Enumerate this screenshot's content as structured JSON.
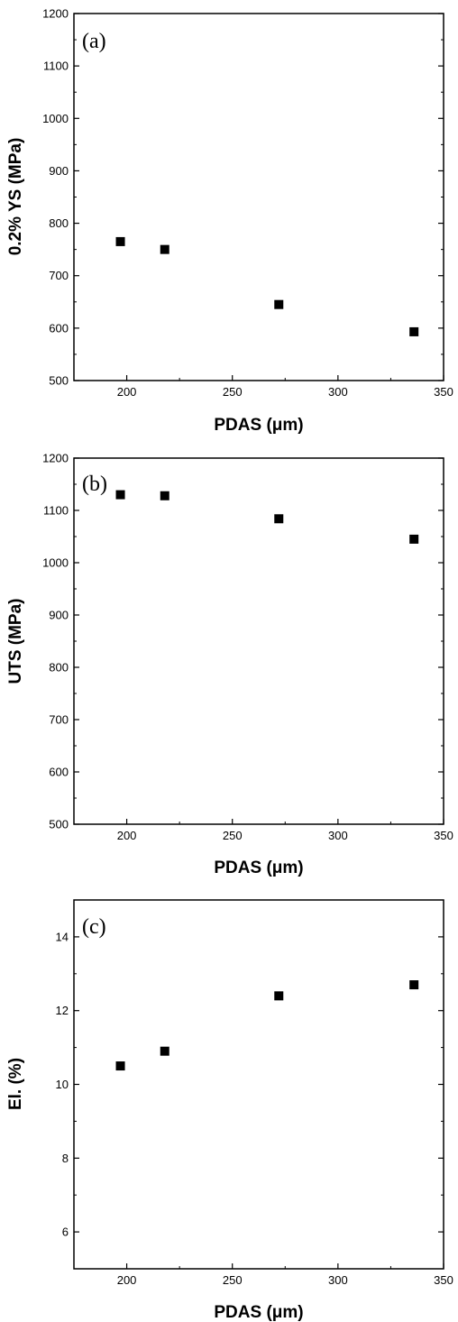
{
  "chart_data": [
    {
      "type": "scatter",
      "panel_label": "(a)",
      "xlabel": "PDAS (μm)",
      "ylabel": "0.2% YS (MPa)",
      "xlim": [
        175,
        350
      ],
      "ylim": [
        500,
        1200
      ],
      "xticks": [
        200,
        250,
        300,
        350
      ],
      "yticks": [
        500,
        600,
        700,
        800,
        900,
        1000,
        1100,
        1200
      ],
      "series": [
        {
          "x": [
            197,
            218,
            272,
            336
          ],
          "y": [
            765,
            750,
            645,
            593
          ]
        }
      ]
    },
    {
      "type": "scatter",
      "panel_label": "(b)",
      "xlabel": "PDAS (μm)",
      "ylabel": "UTS (MPa)",
      "xlim": [
        175,
        350
      ],
      "ylim": [
        500,
        1200
      ],
      "xticks": [
        200,
        250,
        300,
        350
      ],
      "yticks": [
        500,
        600,
        700,
        800,
        900,
        1000,
        1100,
        1200
      ],
      "series": [
        {
          "x": [
            197,
            218,
            272,
            336
          ],
          "y": [
            1130,
            1128,
            1084,
            1045
          ]
        }
      ]
    },
    {
      "type": "scatter",
      "panel_label": "(c)",
      "xlabel": "PDAS (μm)",
      "ylabel": "El. (%)",
      "xlim": [
        175,
        350
      ],
      "ylim": [
        5,
        15
      ],
      "xticks": [
        200,
        250,
        300,
        350
      ],
      "yticks": [
        6,
        8,
        10,
        12,
        14
      ],
      "series": [
        {
          "x": [
            197,
            218,
            272,
            336
          ],
          "y": [
            10.5,
            10.9,
            12.4,
            12.7
          ]
        }
      ]
    }
  ]
}
